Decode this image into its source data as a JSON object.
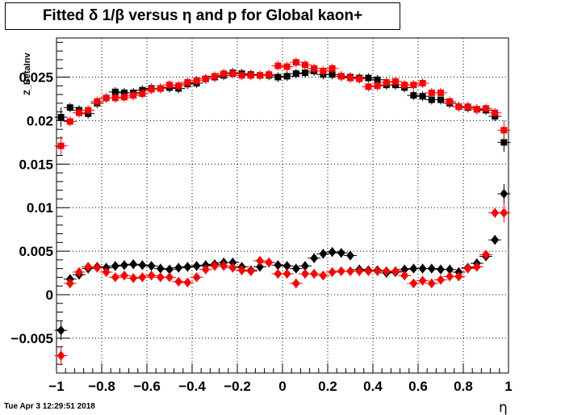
{
  "title": "Fitted δ 1/β versus η and p for Global kaon+",
  "timestamp": "Tue Apr  3 12:29:51 2018",
  "chart_data": {
    "type": "scatter",
    "xlabel": "η",
    "ylabel": "Z_BetaInv",
    "xlim": [
      -1,
      1
    ],
    "ylim": [
      -0.009,
      0.0295
    ],
    "grid": true,
    "xticks": [
      "−1",
      "−0.8",
      "−0.6",
      "−0.4",
      "−0.2",
      "0",
      "0.2",
      "0.4",
      "0.6",
      "0.8",
      "1"
    ],
    "yticks": [
      "−0.005",
      "0",
      "0.005",
      "0.01",
      "0.015",
      "0.02",
      "0.025"
    ],
    "x": [
      -0.98,
      -0.94,
      -0.9,
      -0.86,
      -0.82,
      -0.78,
      -0.74,
      -0.7,
      -0.66,
      -0.62,
      -0.58,
      -0.54,
      -0.5,
      -0.46,
      -0.42,
      -0.38,
      -0.34,
      -0.3,
      -0.26,
      -0.22,
      -0.18,
      -0.14,
      -0.1,
      -0.06,
      -0.02,
      0.02,
      0.06,
      0.1,
      0.14,
      0.18,
      0.22,
      0.26,
      0.3,
      0.34,
      0.38,
      0.42,
      0.46,
      0.5,
      0.54,
      0.58,
      0.62,
      0.66,
      0.7,
      0.74,
      0.78,
      0.82,
      0.86,
      0.9,
      0.94,
      0.98
    ],
    "series": [
      {
        "marker": "square",
        "color": "#000000",
        "values": [
          0.0204,
          0.0215,
          0.0212,
          0.0208,
          0.022,
          0.0226,
          0.0233,
          0.0232,
          0.0232,
          0.0235,
          0.0237,
          0.0237,
          0.0238,
          0.0237,
          0.0242,
          0.0243,
          0.0248,
          0.025,
          0.0252,
          0.0255,
          0.0254,
          0.0253,
          0.0252,
          0.0252,
          0.025,
          0.0251,
          0.0254,
          0.0255,
          0.0257,
          0.0253,
          0.0253,
          0.0251,
          0.025,
          0.0249,
          0.0249,
          0.0247,
          0.0241,
          0.0241,
          0.0238,
          0.0229,
          0.0228,
          0.0224,
          0.0224,
          0.022,
          0.0216,
          0.0215,
          0.0213,
          0.0212,
          0.0205,
          0.0175
        ]
      },
      {
        "marker": "square",
        "color": "#ff0000",
        "values": [
          0.0171,
          0.0199,
          0.0209,
          0.0212,
          0.0222,
          0.0226,
          0.0226,
          0.0227,
          0.0229,
          0.0231,
          0.0236,
          0.0237,
          0.0241,
          0.024,
          0.0244,
          0.0246,
          0.0248,
          0.0251,
          0.0254,
          0.0254,
          0.0252,
          0.0252,
          0.0252,
          0.0253,
          0.0263,
          0.0262,
          0.0267,
          0.0264,
          0.026,
          0.0257,
          0.026,
          0.0251,
          0.0249,
          0.0248,
          0.0239,
          0.024,
          0.0244,
          0.0245,
          0.0241,
          0.0241,
          0.0243,
          0.0232,
          0.0232,
          0.0222,
          0.0216,
          0.0216,
          0.0213,
          0.0214,
          0.0209,
          0.0189
        ]
      },
      {
        "marker": "diamond",
        "color": "#000000",
        "values": [
          -0.0041,
          0.0018,
          0.0023,
          0.003,
          0.0032,
          0.0031,
          0.0033,
          0.0034,
          0.0035,
          0.0034,
          0.0033,
          0.003,
          0.0029,
          0.0031,
          0.0032,
          0.0033,
          0.0034,
          0.0035,
          0.0037,
          0.0037,
          0.0032,
          0.0028,
          0.0032,
          0.0037,
          0.0034,
          0.0033,
          0.003,
          0.0033,
          0.0042,
          0.0047,
          0.0049,
          0.0048,
          0.0045,
          0.0029,
          0.0028,
          0.0028,
          0.0025,
          0.0026,
          0.0029,
          0.003,
          0.003,
          0.003,
          0.0029,
          0.0029,
          0.0026,
          0.0031,
          0.0036,
          0.0044,
          0.0063,
          0.0116
        ]
      },
      {
        "marker": "diamond",
        "color": "#ff0000",
        "values": [
          -0.007,
          0.0013,
          0.0026,
          0.0032,
          0.0031,
          0.0026,
          0.002,
          0.0022,
          0.0019,
          0.002,
          0.0022,
          0.002,
          0.002,
          0.0015,
          0.0014,
          0.002,
          0.0029,
          0.0033,
          0.0033,
          0.0031,
          0.0028,
          0.0027,
          0.0039,
          0.0037,
          0.0024,
          0.0024,
          0.0013,
          0.0024,
          0.0024,
          0.0022,
          0.0026,
          0.0027,
          0.0027,
          0.0027,
          0.0027,
          0.0027,
          0.0027,
          0.0027,
          0.0022,
          0.0013,
          0.0016,
          0.0013,
          0.0017,
          0.0021,
          0.0021,
          0.003,
          0.0032,
          0.0046,
          0.0094,
          0.0094
        ]
      }
    ]
  }
}
